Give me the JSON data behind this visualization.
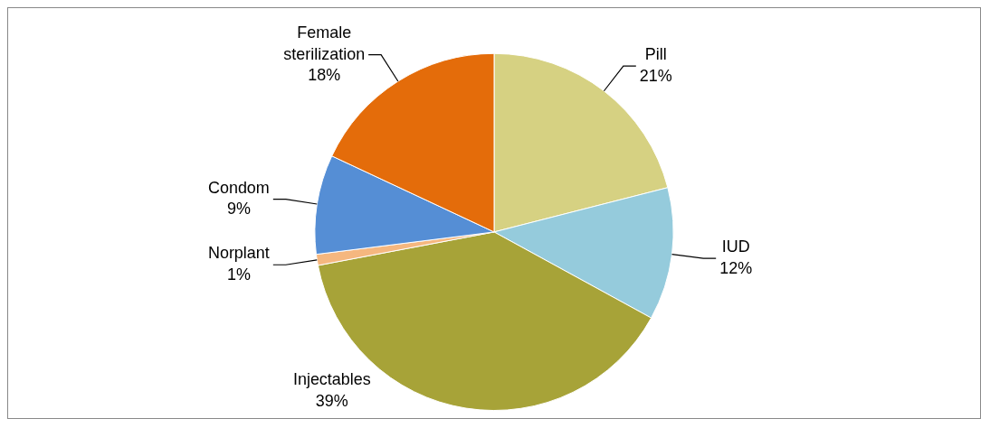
{
  "chart_data": {
    "type": "pie",
    "categories": [
      "Pill",
      "IUD",
      "Injectables",
      "Norplant",
      "Condom",
      "Female sterilization"
    ],
    "values": [
      21,
      12,
      39,
      1,
      9,
      18
    ],
    "value_labels": [
      "21%",
      "12%",
      "39%",
      "1%",
      "9%",
      "18%"
    ],
    "colors": [
      "#d6d182",
      "#95cbdc",
      "#a7a338",
      "#f5b77f",
      "#558ed5",
      "#e46c0a"
    ],
    "legend": false
  }
}
